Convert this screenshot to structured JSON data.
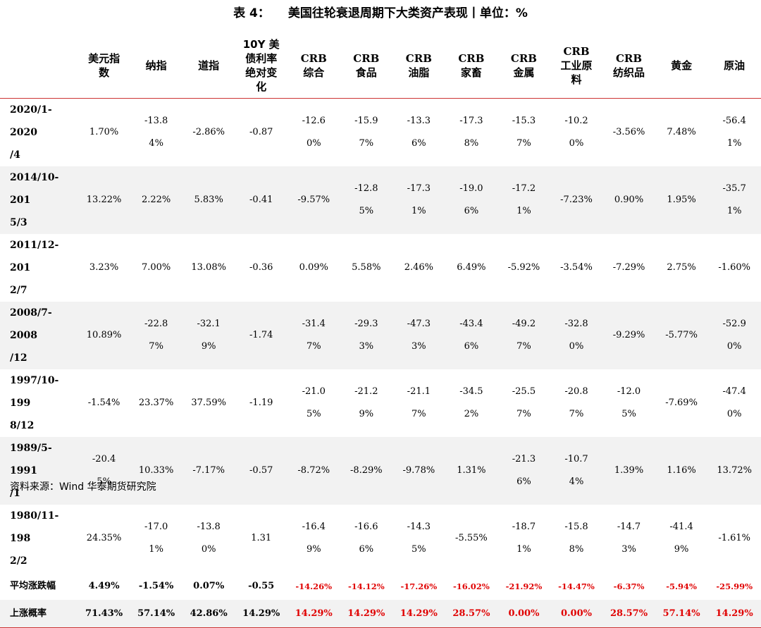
{
  "title": {
    "label": "表 4：",
    "text": "美国往轮衰退周期下大类资产表现丨单位：%"
  },
  "headers": [
    {
      "lines": [
        "美元指",
        "数"
      ]
    },
    {
      "lines": [
        "纳指"
      ]
    },
    {
      "lines": [
        "道指"
      ]
    },
    {
      "lines": [
        "10Y 美",
        "债利率",
        "绝对变",
        "化"
      ]
    },
    {
      "lines": [
        "CRB",
        "综合"
      ]
    },
    {
      "lines": [
        "CRB",
        "食品"
      ]
    },
    {
      "lines": [
        "CRB",
        "油脂"
      ]
    },
    {
      "lines": [
        "CRB",
        "家畜"
      ]
    },
    {
      "lines": [
        "CRB",
        "金属"
      ]
    },
    {
      "lines": [
        "CRB",
        "工业原",
        "料"
      ]
    },
    {
      "lines": [
        "CRB",
        "纺织品"
      ]
    },
    {
      "lines": [
        "黄金"
      ]
    },
    {
      "lines": [
        "原油"
      ]
    }
  ],
  "rows": [
    {
      "period": [
        "2020/1-2020",
        "/4"
      ],
      "values": [
        "1.70%",
        "-13.84%",
        "-2.86%",
        "-0.87",
        "-12.60%",
        "-15.97%",
        "-13.36%",
        "-17.38%",
        "-15.37%",
        "-10.20%",
        "-3.56%",
        "7.48%",
        "-56.41%"
      ]
    },
    {
      "period": [
        "2014/10-201",
        "5/3"
      ],
      "values": [
        "13.22%",
        "2.22%",
        "5.83%",
        "-0.41",
        "-9.57%",
        "-12.85%",
        "-17.31%",
        "-19.06%",
        "-17.21%",
        "-7.23%",
        "0.90%",
        "1.95%",
        "-35.71%"
      ]
    },
    {
      "period": [
        "2011/12-201",
        "2/7"
      ],
      "values": [
        "3.23%",
        "7.00%",
        "13.08%",
        "-0.36",
        "0.09%",
        "5.58%",
        "2.46%",
        "6.49%",
        "-5.92%",
        "-3.54%",
        "-7.29%",
        "2.75%",
        "-1.60%"
      ]
    },
    {
      "period": [
        "2008/7-2008",
        "/12"
      ],
      "values": [
        "10.89%",
        "-22.87%",
        "-32.19%",
        "-1.74",
        "-31.47%",
        "-29.33%",
        "-47.33%",
        "-43.46%",
        "-49.27%",
        "-32.80%",
        "-9.29%",
        "-5.77%",
        "-52.90%"
      ]
    },
    {
      "period": [
        "1997/10-199",
        "8/12"
      ],
      "values": [
        "-1.54%",
        "23.37%",
        "37.59%",
        "-1.19",
        "-21.05%",
        "-21.29%",
        "-21.17%",
        "-34.52%",
        "-25.57%",
        "-20.87%",
        "-12.05%",
        "-7.69%",
        "-47.40%"
      ]
    },
    {
      "period": [
        "1989/5-1991",
        "/1"
      ],
      "values": [
        "-20.45%",
        "10.33%",
        "-7.17%",
        "-0.57",
        "-8.72%",
        "-8.29%",
        "-9.78%",
        "1.31%",
        "-21.36%",
        "-10.74%",
        "1.39%",
        "1.16%",
        "13.72%"
      ]
    },
    {
      "period": [
        "1980/11-198",
        "2/2"
      ],
      "values": [
        "24.35%",
        "-17.01%",
        "-13.80%",
        "1.31",
        "-16.49%",
        "-16.66%",
        "-14.35%",
        "-5.55%",
        "-18.71%",
        "-15.88%",
        "-14.73%",
        "-41.49%",
        "-1.61%"
      ]
    }
  ],
  "summary": [
    {
      "label": "平均涨跌幅",
      "values": [
        "4.49%",
        "-1.54%",
        "0.07%",
        "-0.55",
        "-14.26%",
        "-14.12%",
        "-17.26%",
        "-16.02%",
        "-21.92%",
        "-14.47%",
        "-6.37%",
        "-5.94%",
        "-25.99%"
      ]
    },
    {
      "label": "上涨概率",
      "values": [
        "71.43%",
        "57.14%",
        "42.86%",
        "14.29%",
        "14.29%",
        "14.29%",
        "14.29%",
        "28.57%",
        "0.00%",
        "0.00%",
        "28.57%",
        "57.14%",
        "14.29%"
      ]
    }
  ],
  "source": "资料来源：Wind  华泰期货研究院",
  "colors": {
    "accent_red": "#e00000",
    "rule_red": "#cc3333",
    "row_shade": "#f2f2f2"
  }
}
